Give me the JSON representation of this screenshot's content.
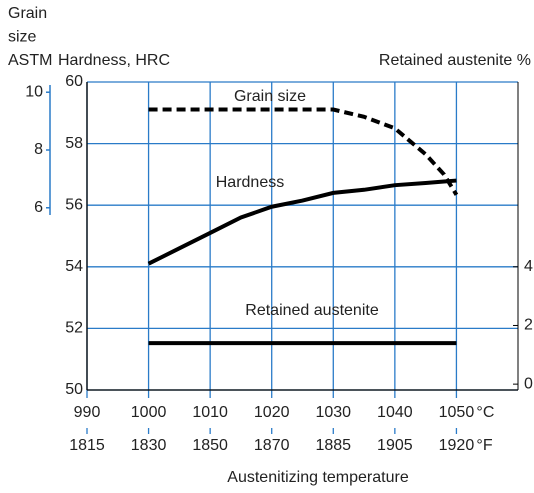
{
  "chart_data": {
    "type": "line",
    "y3_label_lines": [
      "Grain",
      "size",
      "ASTM"
    ],
    "ylabel": "Hardness, HRC",
    "y2label": "Retained austenite %",
    "xlabel": "Austenitizing temperature",
    "x_unit": "°C",
    "x2_unit": "°F",
    "x": [
      1000,
      1005,
      1010,
      1015,
      1020,
      1025,
      1030,
      1035,
      1040,
      1045,
      1048,
      1050
    ],
    "series": [
      {
        "name": "Grain size",
        "color": "#000000",
        "linestyle": "dashed",
        "axis": "y3",
        "values": [
          9.4,
          9.4,
          9.4,
          9.4,
          9.4,
          9.4,
          9.4,
          9.15,
          8.75,
          7.85,
          7.15,
          6.45
        ]
      },
      {
        "name": "Hardness",
        "color": "#000000",
        "linestyle": "solid",
        "axis": "y",
        "values": [
          54.1,
          54.6,
          55.1,
          55.6,
          55.95,
          56.15,
          56.4,
          56.5,
          56.65,
          56.72,
          56.77,
          56.8
        ]
      },
      {
        "name": "Retained austenite",
        "color": "#000000",
        "linestyle": "solid",
        "axis": "y2",
        "values": [
          1.4,
          1.4,
          1.4,
          1.4,
          1.4,
          1.4,
          1.4,
          1.4,
          1.4,
          1.4,
          1.4,
          1.4
        ]
      }
    ],
    "xlim": [
      990,
      1060
    ],
    "xticks": [
      990,
      1000,
      1010,
      1020,
      1030,
      1040,
      1050
    ],
    "x2ticks": [
      {
        "value": 990,
        "label": "1815"
      },
      {
        "value": 1000,
        "label": "1830"
      },
      {
        "value": 1010,
        "label": "1850"
      },
      {
        "value": 1020,
        "label": "1870"
      },
      {
        "value": 1030,
        "label": "1885"
      },
      {
        "value": 1040,
        "label": "1905"
      },
      {
        "value": 1050,
        "label": "1920"
      }
    ],
    "ylim": [
      50,
      60
    ],
    "yticks": [
      50,
      52,
      54,
      56,
      58,
      60
    ],
    "y2lim": [
      -0.2,
      10.3
    ],
    "y2ticks": [
      0,
      2,
      4
    ],
    "y3lim": [
      5.75,
      10.25
    ],
    "y3ticks": [
      6,
      8,
      10
    ],
    "grid": true,
    "grid_color": "#2a7bc8"
  }
}
